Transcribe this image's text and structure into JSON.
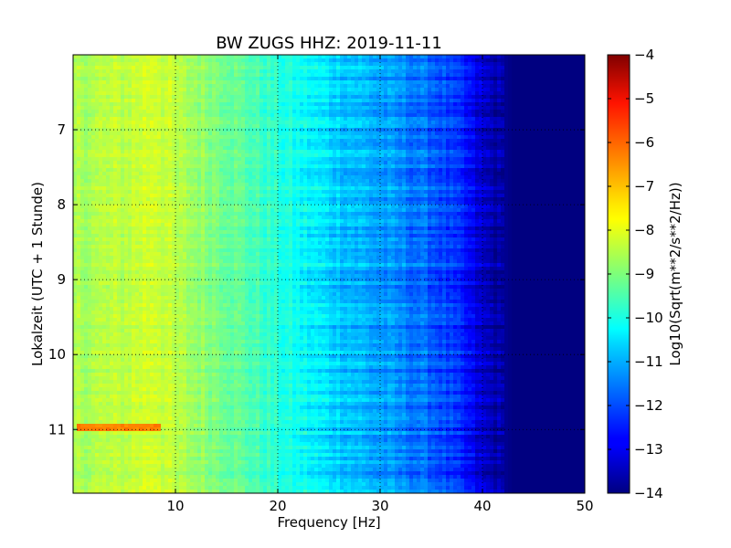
{
  "chart_data": {
    "type": "heatmap",
    "title": "BW ZUGS HHZ: 2019-11-11",
    "xlabel": "Frequency [Hz]",
    "ylabel": "Lokalzeit (UTC + 1 Stunde)",
    "xlim": [
      0,
      50
    ],
    "ylim": [
      6.0,
      11.85
    ],
    "y_inverted": true,
    "xticks": [
      10,
      20,
      30,
      40,
      50
    ],
    "yticks": [
      7,
      8,
      9,
      10,
      11
    ],
    "grid": true,
    "colormap": "jet",
    "colorbar": {
      "label": "Log10(Sqrt(m**2/s**2/Hz))",
      "range": [
        -14,
        -4
      ],
      "ticks": [
        -4,
        -5,
        -6,
        -7,
        -8,
        -9,
        -10,
        -11,
        -12,
        -13,
        -14
      ]
    },
    "spectrum_profile": {
      "frequency_hz": [
        0,
        5,
        8,
        10,
        15,
        20,
        25,
        30,
        35,
        38,
        40,
        43,
        50
      ],
      "log10_amplitude": [
        -8.6,
        -8.4,
        -8.1,
        -8.5,
        -9.1,
        -9.9,
        -10.6,
        -11.2,
        -11.8,
        -12.5,
        -13.3,
        -14.0,
        -14.0
      ]
    },
    "annotations": [
      {
        "label": "narrow high-amplitude band",
        "time_h": 10.95,
        "freq_range_hz": [
          0.5,
          8.5
        ],
        "log10_amplitude": -6.5
      }
    ]
  }
}
